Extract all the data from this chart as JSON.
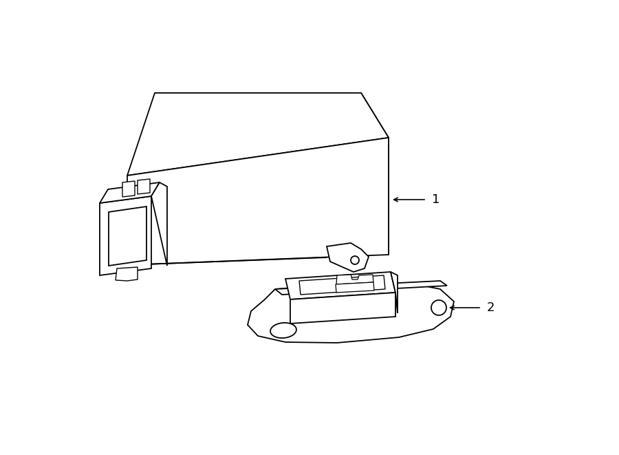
{
  "background_color": "#ffffff",
  "line_color": "#000000",
  "line_width": 1.3,
  "label1": "1",
  "label2": "2",
  "figsize": [
    9.0,
    6.61
  ],
  "dpi": 100
}
